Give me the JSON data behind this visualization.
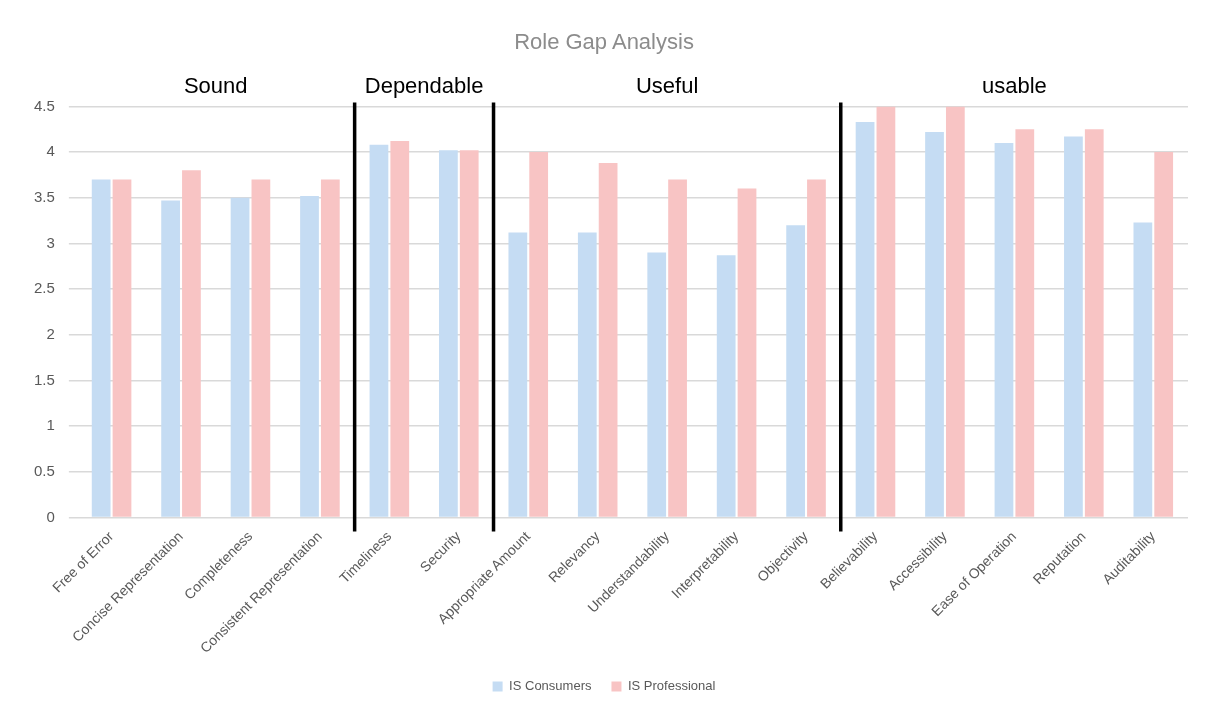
{
  "chart_data": {
    "type": "bar",
    "title": "Role Gap Analysis",
    "categories": [
      "Free of Error",
      "Concise Representation",
      "Completeness",
      "Consistent Representation",
      "Timeliness",
      "Security",
      "Appropriate Amount",
      "Relevancy",
      "Understandability",
      "Interpretability",
      "Objectivity",
      "Believability",
      "Accessibility",
      "Ease of Operation",
      "Reputation",
      "Auditability"
    ],
    "series": [
      {
        "name": "IS Consumers",
        "color": "#c5dcf3",
        "values": [
          3.7,
          3.47,
          3.5,
          3.52,
          4.08,
          4.02,
          3.12,
          3.12,
          2.9,
          2.87,
          3.2,
          4.33,
          4.22,
          4.1,
          4.17,
          3.23
        ]
      },
      {
        "name": "IS Professional",
        "color": "#f8c4c4",
        "values": [
          3.7,
          3.8,
          3.7,
          3.7,
          4.12,
          4.02,
          4.0,
          3.88,
          3.7,
          3.6,
          3.7,
          4.5,
          4.5,
          4.25,
          4.25,
          4.0
        ]
      }
    ],
    "ylim": [
      0,
      4.5
    ],
    "yticks": [
      0,
      0.5,
      1,
      1.5,
      2,
      2.5,
      3,
      3.5,
      4,
      4.5
    ],
    "grid": "y",
    "legend": "bottom",
    "annotations": [
      "Sound",
      "Dependable",
      "Useful",
      "usable"
    ]
  }
}
